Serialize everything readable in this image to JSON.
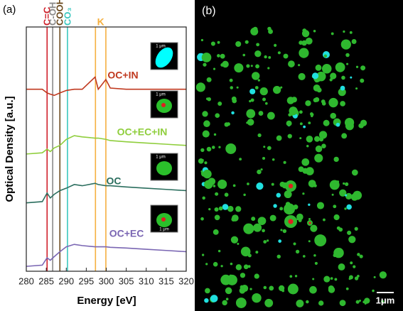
{
  "chart_data": {
    "type": "line",
    "panel_labels": [
      "(a)",
      "(b)"
    ],
    "x_label": "Energy [eV]",
    "y_label": "Optical Density [a.u.]",
    "xlim": [
      280,
      320
    ],
    "xticks": [
      280,
      285,
      290,
      295,
      300,
      305,
      310,
      315,
      320
    ],
    "ylim": [
      0,
      10
    ],
    "x": [
      280,
      284,
      285.2,
      286,
      287,
      288.4,
      290,
      292,
      294,
      297.2,
      298,
      299.9,
      301,
      305,
      310,
      315,
      320
    ],
    "series": [
      {
        "name": "OC+IN",
        "color": "#c0391f",
        "values": [
          7.45,
          7.45,
          7.3,
          7.25,
          7.2,
          7.3,
          7.4,
          7.45,
          7.45,
          7.95,
          7.45,
          7.85,
          7.5,
          7.45,
          7.45,
          7.45,
          7.45
        ]
      },
      {
        "name": "OC+EC+IN",
        "color": "#8fce3c",
        "values": [
          4.8,
          4.85,
          5.0,
          4.9,
          5.05,
          5.15,
          5.4,
          5.55,
          5.5,
          5.45,
          5.45,
          5.4,
          5.35,
          5.3,
          5.25,
          5.2,
          5.15
        ]
      },
      {
        "name": "OC",
        "color": "#2b6e5e",
        "values": [
          2.8,
          2.85,
          3.2,
          3.0,
          3.15,
          3.3,
          3.4,
          3.55,
          3.5,
          3.6,
          3.55,
          3.5,
          3.5,
          3.45,
          3.4,
          3.35,
          3.3
        ]
      },
      {
        "name": "OC+EC",
        "color": "#7a66b3",
        "values": [
          0.2,
          0.25,
          0.55,
          0.45,
          0.6,
          0.8,
          1.0,
          1.1,
          1.05,
          1.0,
          1.0,
          1.0,
          0.98,
          0.95,
          0.9,
          0.85,
          0.8
        ]
      }
    ],
    "reference_lines": [
      {
        "label": "C=C",
        "color": "#d0202a",
        "x": [
          285.2
        ]
      },
      {
        "label": "C-OH",
        "color": "#8a8a8a",
        "x": [
          286.6
        ]
      },
      {
        "label": "COOH",
        "color": "#6b4a1e",
        "x": [
          288.4
        ]
      },
      {
        "label": "CO₃",
        "color": "#3cc8c0",
        "x": [
          290.3
        ]
      },
      {
        "label": "K",
        "color": "#f5b040",
        "x": [
          297.3,
          299.9
        ]
      }
    ],
    "inset_scale_labels": [
      "1 μm",
      "1 μm",
      "1 μm",
      "1 μm"
    ],
    "image_scale_label": "1μm"
  }
}
